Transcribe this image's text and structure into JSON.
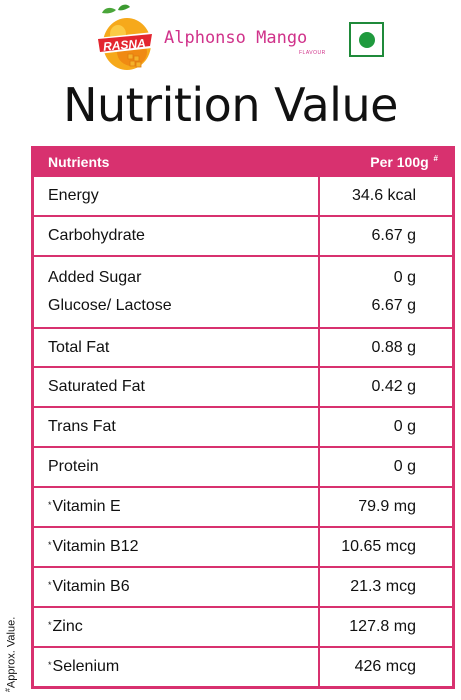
{
  "brand": {
    "logo_text": "RASNA",
    "product_name": "Alphonso Mango",
    "product_sub": "FLAVOUR",
    "veg_mark": "veg-symbol-icon",
    "colors": {
      "brand_magenta": "#d0328a",
      "table_accent": "#d8316f",
      "veg_green": "#1f9a3e"
    }
  },
  "title": "Nutrition Value",
  "table": {
    "header": {
      "nutrients": "Nutrients",
      "per": "Per 100g",
      "per_mark": "#"
    },
    "rows": [
      {
        "name": "Energy",
        "value": "34.6 kcal"
      },
      {
        "name": "Carbohydrate",
        "value": "6.67 g"
      },
      {
        "name": "Added Sugar",
        "value": "0 g",
        "name2": "Glucose/ Lactose",
        "value2": "6.67 g"
      },
      {
        "name": "Total Fat",
        "value": "0.88 g"
      },
      {
        "name": "Saturated Fat",
        "value": "0.42 g"
      },
      {
        "name": "Trans Fat",
        "value": "0 g"
      },
      {
        "name": "Protein",
        "value": "0 g"
      },
      {
        "mark": "*",
        "name": "Vitamin E",
        "value": "79.9 mg"
      },
      {
        "mark": "*",
        "name": "Vitamin B12",
        "value": "10.65 mcg"
      },
      {
        "mark": "*",
        "name": "Vitamin B6",
        "value": "21.3 mcg"
      },
      {
        "mark": "*",
        "name": "Zinc",
        "value": "127.8 mg"
      },
      {
        "mark": "*",
        "name": "Selenium",
        "value": "426 mcg"
      }
    ]
  },
  "footnote": {
    "mark": "#",
    "text": "Approx. Value."
  }
}
